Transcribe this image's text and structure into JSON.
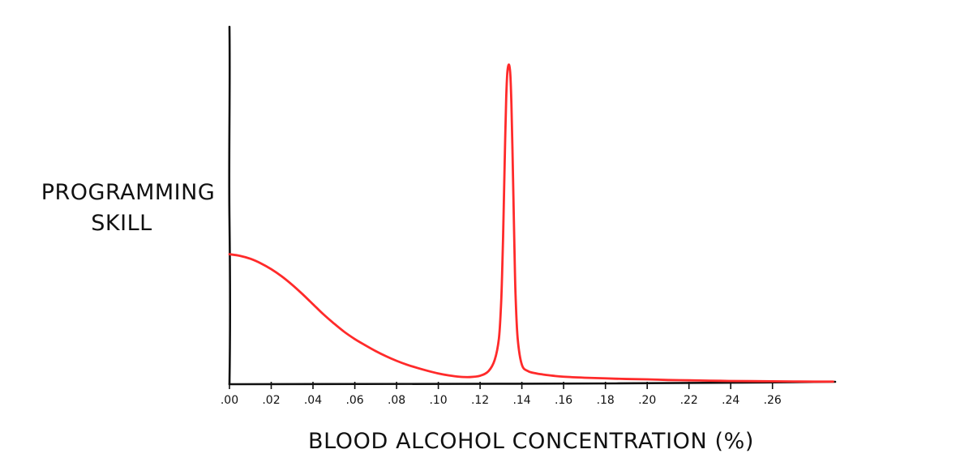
{
  "chart_data": {
    "type": "line",
    "title": "",
    "xlabel": "BLOOD ALCOHOL CONCENTRATION (%)",
    "ylabel_lines": [
      "PROGRAMMING",
      "SKILL"
    ],
    "x_tick_labels": [
      ".00",
      ".02",
      ".04",
      ".06",
      ".08",
      ".10",
      ".12",
      ".14",
      ".16",
      ".18",
      ".20",
      ".22",
      ".24",
      ".26"
    ],
    "x_ticks": [
      0.0,
      0.02,
      0.04,
      0.06,
      0.08,
      0.1,
      0.12,
      0.14,
      0.16,
      0.18,
      0.2,
      0.22,
      0.24,
      0.26
    ],
    "xlim": [
      0,
      0.29
    ],
    "ylim": [
      0,
      100
    ],
    "y_ticks_shown": false,
    "grid": false,
    "line_color": "#ff2a2a",
    "axis_color": "#111111",
    "series": [
      {
        "x": [
          0.0,
          0.005,
          0.01,
          0.015,
          0.02,
          0.025,
          0.03,
          0.035,
          0.04,
          0.045,
          0.05,
          0.055,
          0.06,
          0.065,
          0.07,
          0.075,
          0.08,
          0.085,
          0.09,
          0.095,
          0.1,
          0.105,
          0.11,
          0.115,
          0.12,
          0.124,
          0.127,
          0.129,
          0.13,
          0.1305,
          0.131,
          0.1315,
          0.132,
          0.1325,
          0.133,
          0.1335,
          0.134,
          0.1345,
          0.135,
          0.1355,
          0.136,
          0.1365,
          0.137,
          0.138,
          0.14,
          0.143,
          0.147,
          0.15,
          0.155,
          0.16,
          0.17,
          0.18,
          0.19,
          0.2,
          0.21,
          0.22,
          0.23,
          0.24,
          0.25,
          0.26,
          0.27,
          0.28,
          0.289
        ],
        "y": [
          40.0,
          39.5,
          38.6,
          37.2,
          35.4,
          33.2,
          30.6,
          27.7,
          24.6,
          21.5,
          18.7,
          16.1,
          13.9,
          12.0,
          10.2,
          8.6,
          7.2,
          6.0,
          5.0,
          4.1,
          3.3,
          2.7,
          2.3,
          2.2,
          2.6,
          4.0,
          7.5,
          14.0,
          24.0,
          33.0,
          45.0,
          60.0,
          75.0,
          88.0,
          95.5,
          98.0,
          98.0,
          95.0,
          86.0,
          72.0,
          56.0,
          40.0,
          27.0,
          14.0,
          6.0,
          4.0,
          3.3,
          3.0,
          2.6,
          2.3,
          2.0,
          1.8,
          1.6,
          1.5,
          1.3,
          1.2,
          1.1,
          1.0,
          0.95,
          0.9,
          0.85,
          0.8,
          0.8
        ]
      }
    ]
  }
}
